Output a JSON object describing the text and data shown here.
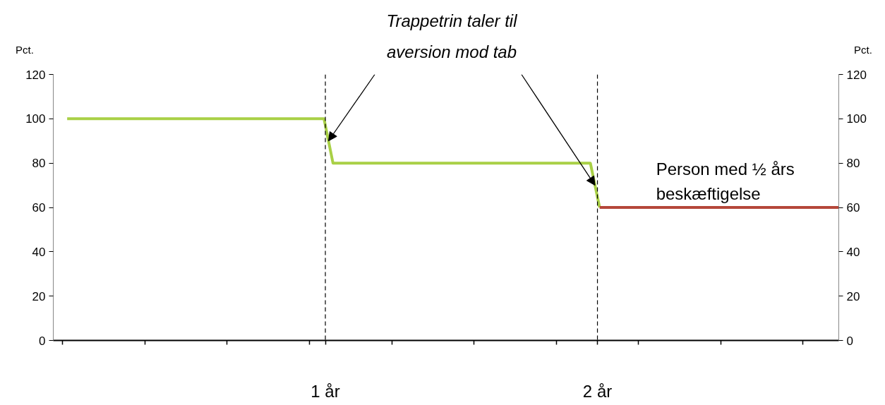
{
  "chart_data": {
    "type": "line",
    "ylabel": "Pct.",
    "y2label": "Pct.",
    "xlim": [
      0,
      2.887
    ],
    "xticks": [
      {
        "value": 0.033,
        "label": null
      },
      {
        "value": 0.336,
        "label": null
      },
      {
        "value": 0.638,
        "label": null
      },
      {
        "value": 0.941,
        "label": null
      },
      {
        "value": 1,
        "label": "1 år"
      },
      {
        "value": 1.244,
        "label": null
      },
      {
        "value": 1.546,
        "label": null
      },
      {
        "value": 1.849,
        "label": null
      },
      {
        "value": 2,
        "label": "2 år"
      },
      {
        "value": 2.151,
        "label": null
      },
      {
        "value": 2.454,
        "label": null
      },
      {
        "value": 2.756,
        "label": null
      }
    ],
    "ylim": [
      0,
      120
    ],
    "yticks": [
      0,
      20,
      40,
      60,
      80,
      100,
      120
    ],
    "y2lim": [
      0,
      120
    ],
    "y2ticks": [
      0,
      20,
      40,
      60,
      80,
      100,
      120
    ],
    "grid": false,
    "legend": false,
    "series": [
      {
        "color": "#a9d046",
        "x": [
          0.051,
          0.995,
          1.028,
          1.974,
          2.008
        ],
        "values": [
          100,
          100,
          80,
          80,
          60
        ]
      },
      {
        "name": "Person med ½ års beskæftigelse",
        "color": "#b5473a",
        "x": [
          2.008,
          2.887
        ],
        "values": [
          60,
          60
        ]
      }
    ],
    "ref_lines": [
      {
        "axis": "x",
        "value": 1,
        "line_style": "dashed",
        "color": "#000000"
      },
      {
        "axis": "x",
        "value": 2,
        "line_style": "dashed",
        "color": "#000000"
      }
    ],
    "annotations": [
      {
        "text": "Trappetrin taler til aversion mod tab",
        "x": 1.0115,
        "y": 90
      }
    ]
  }
}
